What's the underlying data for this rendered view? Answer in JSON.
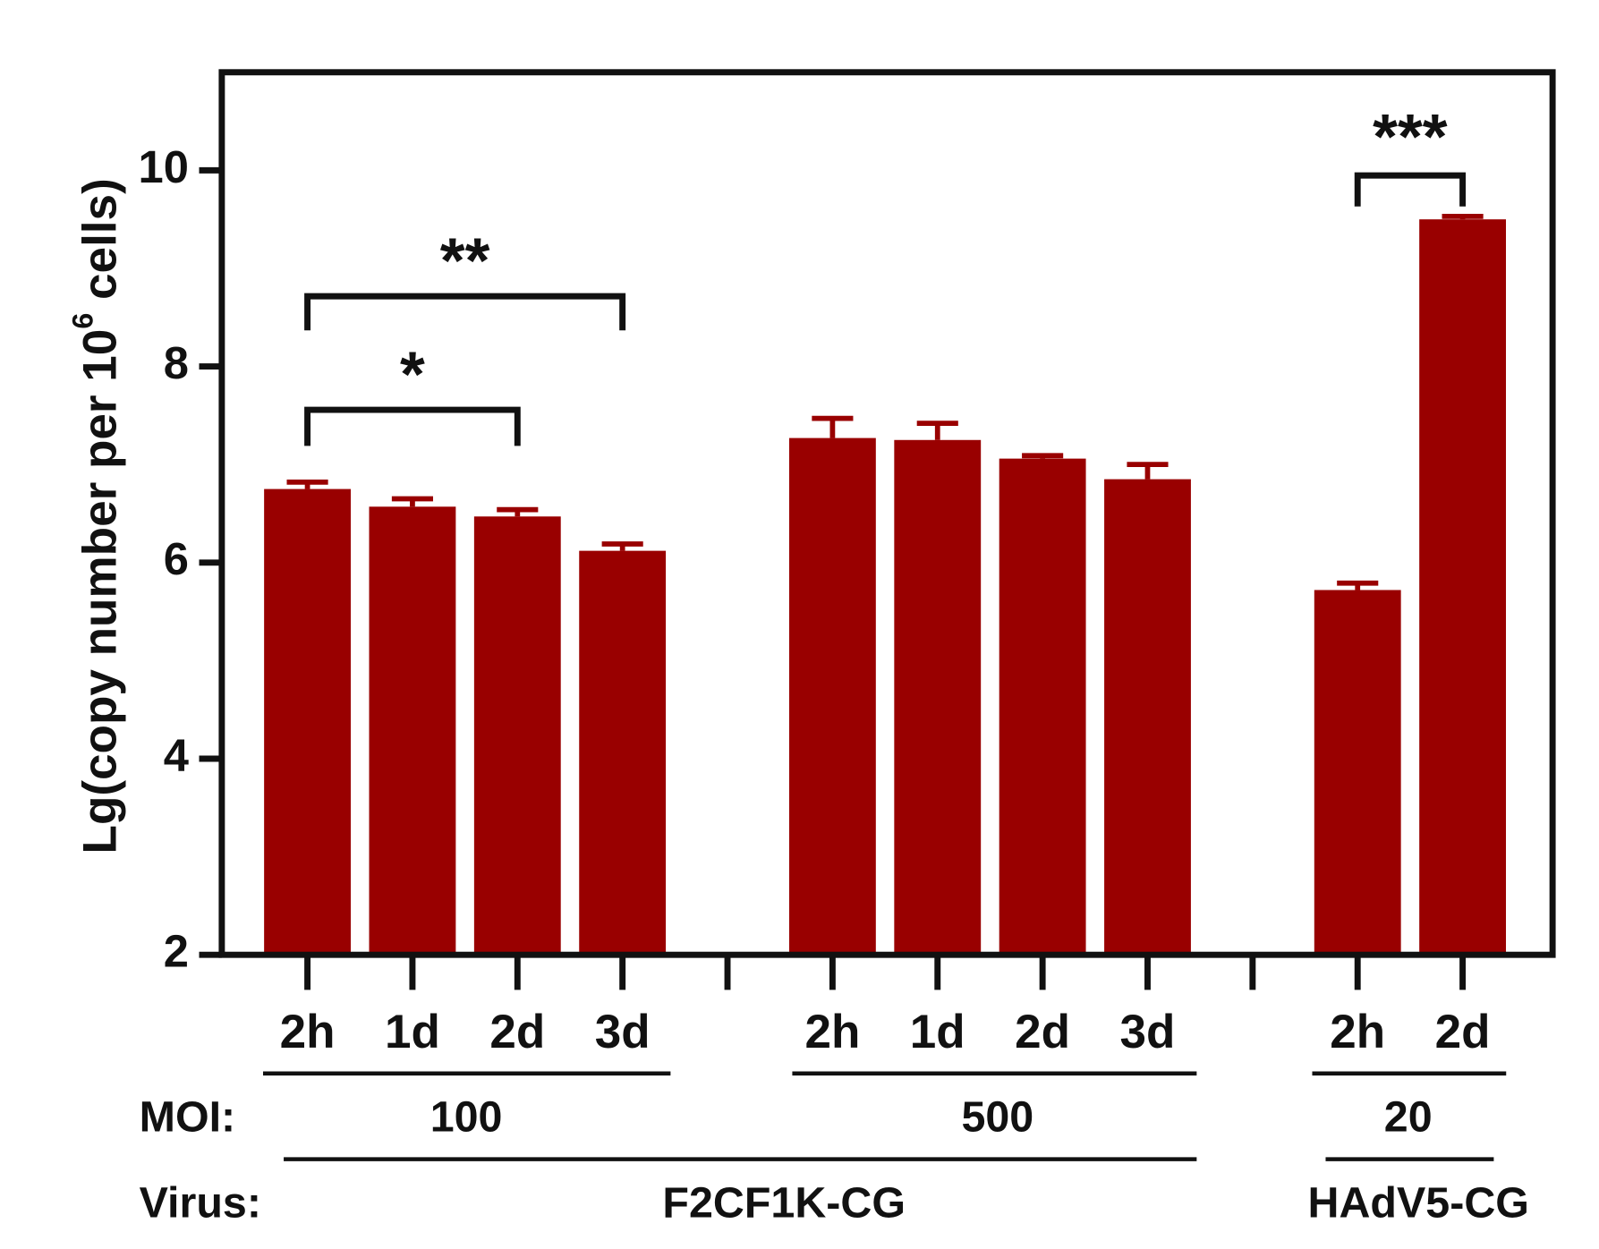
{
  "chart_data": {
    "type": "bar",
    "ylabel": [
      "Lg(copy number per 10",
      "6",
      " cells)"
    ],
    "categories": [
      "2h",
      "1d",
      "2d",
      "3d",
      null,
      "2h",
      "1d",
      "2d",
      "3d",
      null,
      "2h",
      "2d"
    ],
    "values": [
      6.75,
      6.57,
      6.47,
      6.12,
      null,
      7.27,
      7.25,
      7.06,
      6.85,
      null,
      5.72,
      9.5
    ],
    "errors": [
      0.07,
      0.08,
      0.07,
      0.07,
      null,
      0.2,
      0.17,
      0.03,
      0.15,
      null,
      0.07,
      0.03
    ],
    "color": "#990000",
    "ylim": [
      2,
      11
    ],
    "yticks": [
      2,
      4,
      6,
      8,
      10
    ],
    "annotations": [
      "*",
      "**",
      "***"
    ],
    "moi": {
      "label": "MOI:",
      "groups": [
        "100",
        "500",
        "20"
      ]
    },
    "virus": {
      "label": "Virus:",
      "groups": [
        "F2CF1K-CG",
        "HAdV5-CG"
      ]
    }
  }
}
